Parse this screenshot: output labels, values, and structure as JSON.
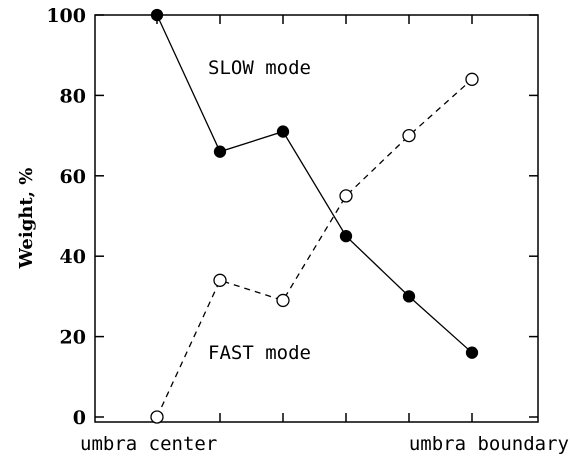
{
  "chart_data": {
    "type": "line",
    "title": "",
    "xlabel": "",
    "ylabel": "Weight, %",
    "ylim": [
      0,
      100
    ],
    "y_ticks": [
      0,
      20,
      40,
      60,
      80,
      100
    ],
    "x": [
      1,
      2,
      3,
      4,
      5,
      6
    ],
    "x_range": [
      0,
      7
    ],
    "x_end_labels": {
      "left": "umbra center",
      "right": "umbra boundary"
    },
    "series": [
      {
        "name": "SLOW mode",
        "marker": "filled-circle",
        "line": "solid",
        "values": [
          100,
          66,
          71,
          45,
          30,
          16
        ]
      },
      {
        "name": "FAST mode",
        "marker": "open-circle",
        "line": "dashed",
        "values": [
          0,
          34,
          29,
          55,
          70,
          84
        ]
      }
    ],
    "grid": false,
    "legend": "none (series labeled inline)"
  }
}
